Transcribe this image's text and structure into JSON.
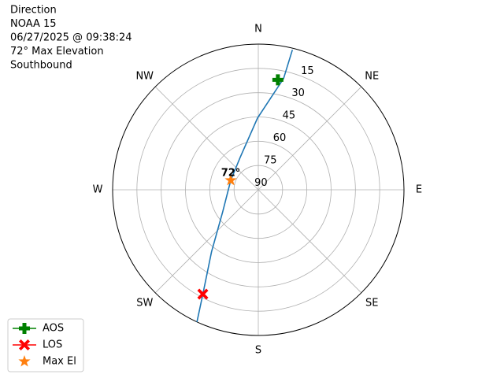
{
  "chart_data": {
    "type": "polar",
    "info_lines": [
      "Direction",
      "NOAA 15",
      "06/27/2025 @ 09:38:24",
      "72° Max Elevation",
      "Southbound"
    ],
    "directions": [
      "N",
      "NE",
      "E",
      "SE",
      "S",
      "SW",
      "W",
      "NW"
    ],
    "rlim": [
      90,
      0
    ],
    "rticks": [
      15,
      30,
      45,
      60,
      75,
      90
    ],
    "grid": true,
    "track": {
      "color": "#1f77b4",
      "azimuth": [
        13.7,
        12.8,
        359.4,
        331,
        289,
        238,
        217,
        208,
        204.9
      ],
      "elevation": [
        1,
        19.5,
        45.7,
        67,
        72,
        64,
        42,
        17,
        0
      ]
    },
    "series": [
      {
        "name": "AOS",
        "color": "#008000",
        "marker": "plus",
        "azimuth": [
          10.1
        ],
        "elevation": [
          21
        ]
      },
      {
        "name": "LOS",
        "color": "#ff0000",
        "marker": "x",
        "azimuth": [
          208
        ],
        "elevation": [
          17
        ]
      },
      {
        "name": "Max El",
        "color": "#ff7f0e",
        "marker": "star",
        "azimuth": [
          289
        ],
        "elevation": [
          72
        ]
      }
    ],
    "annotation": "72°",
    "legend": "lower left"
  }
}
